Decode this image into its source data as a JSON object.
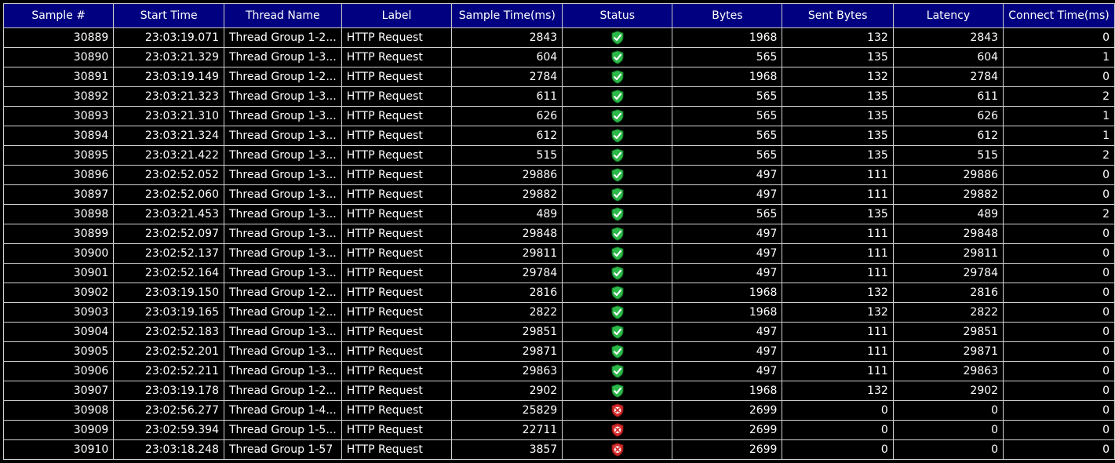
{
  "columns": [
    "Sample #",
    "Start Time",
    "Thread Name",
    "Label",
    "Sample Time(ms)",
    "Status",
    "Bytes",
    "Sent Bytes",
    "Latency",
    "Connect Time(ms)"
  ],
  "status_icons": {
    "success": "success-shield-icon",
    "error": "error-shield-icon"
  },
  "colors": {
    "header_bg": "#000080",
    "row_bg": "#000000",
    "text": "#ffffff",
    "success": "#2db84a",
    "error": "#d42b2b"
  },
  "rows": [
    {
      "sample": "30889",
      "start": "23:03:19.071",
      "thread": "Thread Group 1-2...",
      "label": "HTTP Request",
      "time": "2843",
      "status": "success",
      "bytes": "1968",
      "sent": "132",
      "latency": "2843",
      "connect": "0"
    },
    {
      "sample": "30890",
      "start": "23:03:21.329",
      "thread": "Thread Group 1-3...",
      "label": "HTTP Request",
      "time": "604",
      "status": "success",
      "bytes": "565",
      "sent": "135",
      "latency": "604",
      "connect": "1"
    },
    {
      "sample": "30891",
      "start": "23:03:19.149",
      "thread": "Thread Group 1-2...",
      "label": "HTTP Request",
      "time": "2784",
      "status": "success",
      "bytes": "1968",
      "sent": "132",
      "latency": "2784",
      "connect": "0"
    },
    {
      "sample": "30892",
      "start": "23:03:21.323",
      "thread": "Thread Group 1-3...",
      "label": "HTTP Request",
      "time": "611",
      "status": "success",
      "bytes": "565",
      "sent": "135",
      "latency": "611",
      "connect": "2"
    },
    {
      "sample": "30893",
      "start": "23:03:21.310",
      "thread": "Thread Group 1-3...",
      "label": "HTTP Request",
      "time": "626",
      "status": "success",
      "bytes": "565",
      "sent": "135",
      "latency": "626",
      "connect": "1"
    },
    {
      "sample": "30894",
      "start": "23:03:21.324",
      "thread": "Thread Group 1-3...",
      "label": "HTTP Request",
      "time": "612",
      "status": "success",
      "bytes": "565",
      "sent": "135",
      "latency": "612",
      "connect": "1"
    },
    {
      "sample": "30895",
      "start": "23:03:21.422",
      "thread": "Thread Group 1-3...",
      "label": "HTTP Request",
      "time": "515",
      "status": "success",
      "bytes": "565",
      "sent": "135",
      "latency": "515",
      "connect": "2"
    },
    {
      "sample": "30896",
      "start": "23:02:52.052",
      "thread": "Thread Group 1-3...",
      "label": "HTTP Request",
      "time": "29886",
      "status": "success",
      "bytes": "497",
      "sent": "111",
      "latency": "29886",
      "connect": "0"
    },
    {
      "sample": "30897",
      "start": "23:02:52.060",
      "thread": "Thread Group 1-3...",
      "label": "HTTP Request",
      "time": "29882",
      "status": "success",
      "bytes": "497",
      "sent": "111",
      "latency": "29882",
      "connect": "0"
    },
    {
      "sample": "30898",
      "start": "23:03:21.453",
      "thread": "Thread Group 1-3...",
      "label": "HTTP Request",
      "time": "489",
      "status": "success",
      "bytes": "565",
      "sent": "135",
      "latency": "489",
      "connect": "2"
    },
    {
      "sample": "30899",
      "start": "23:02:52.097",
      "thread": "Thread Group 1-3...",
      "label": "HTTP Request",
      "time": "29848",
      "status": "success",
      "bytes": "497",
      "sent": "111",
      "latency": "29848",
      "connect": "0"
    },
    {
      "sample": "30900",
      "start": "23:02:52.137",
      "thread": "Thread Group 1-3...",
      "label": "HTTP Request",
      "time": "29811",
      "status": "success",
      "bytes": "497",
      "sent": "111",
      "latency": "29811",
      "connect": "0"
    },
    {
      "sample": "30901",
      "start": "23:02:52.164",
      "thread": "Thread Group 1-3...",
      "label": "HTTP Request",
      "time": "29784",
      "status": "success",
      "bytes": "497",
      "sent": "111",
      "latency": "29784",
      "connect": "0"
    },
    {
      "sample": "30902",
      "start": "23:03:19.150",
      "thread": "Thread Group 1-2...",
      "label": "HTTP Request",
      "time": "2816",
      "status": "success",
      "bytes": "1968",
      "sent": "132",
      "latency": "2816",
      "connect": "0"
    },
    {
      "sample": "30903",
      "start": "23:03:19.165",
      "thread": "Thread Group 1-2...",
      "label": "HTTP Request",
      "time": "2822",
      "status": "success",
      "bytes": "1968",
      "sent": "132",
      "latency": "2822",
      "connect": "0"
    },
    {
      "sample": "30904",
      "start": "23:02:52.183",
      "thread": "Thread Group 1-3...",
      "label": "HTTP Request",
      "time": "29851",
      "status": "success",
      "bytes": "497",
      "sent": "111",
      "latency": "29851",
      "connect": "0"
    },
    {
      "sample": "30905",
      "start": "23:02:52.201",
      "thread": "Thread Group 1-3...",
      "label": "HTTP Request",
      "time": "29871",
      "status": "success",
      "bytes": "497",
      "sent": "111",
      "latency": "29871",
      "connect": "0"
    },
    {
      "sample": "30906",
      "start": "23:02:52.211",
      "thread": "Thread Group 1-3...",
      "label": "HTTP Request",
      "time": "29863",
      "status": "success",
      "bytes": "497",
      "sent": "111",
      "latency": "29863",
      "connect": "0"
    },
    {
      "sample": "30907",
      "start": "23:03:19.178",
      "thread": "Thread Group 1-2...",
      "label": "HTTP Request",
      "time": "2902",
      "status": "success",
      "bytes": "1968",
      "sent": "132",
      "latency": "2902",
      "connect": "0"
    },
    {
      "sample": "30908",
      "start": "23:02:56.277",
      "thread": "Thread Group 1-4...",
      "label": "HTTP Request",
      "time": "25829",
      "status": "error",
      "bytes": "2699",
      "sent": "0",
      "latency": "0",
      "connect": "0"
    },
    {
      "sample": "30909",
      "start": "23:02:59.394",
      "thread": "Thread Group 1-5...",
      "label": "HTTP Request",
      "time": "22711",
      "status": "error",
      "bytes": "2699",
      "sent": "0",
      "latency": "0",
      "connect": "0"
    },
    {
      "sample": "30910",
      "start": "23:03:18.248",
      "thread": "Thread Group 1-57",
      "label": "HTTP Request",
      "time": "3857",
      "status": "error",
      "bytes": "2699",
      "sent": "0",
      "latency": "0",
      "connect": "0"
    }
  ]
}
